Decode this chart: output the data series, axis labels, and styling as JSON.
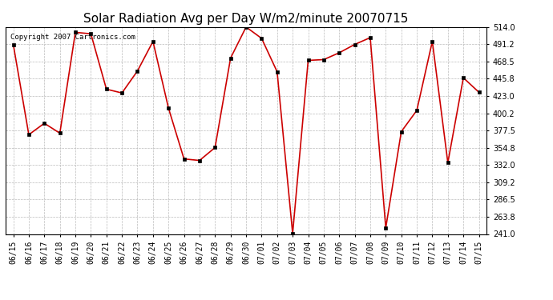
{
  "title": "Solar Radiation Avg per Day W/m2/minute 20070715",
  "copyright_text": "Copyright 2007 Cartronics.com",
  "dates": [
    "06/15",
    "06/16",
    "06/17",
    "06/18",
    "06/19",
    "06/20",
    "06/21",
    "06/22",
    "06/23",
    "06/24",
    "06/25",
    "06/26",
    "06/27",
    "06/28",
    "06/29",
    "06/30",
    "07/01",
    "07/02",
    "07/03",
    "07/04",
    "07/05",
    "07/06",
    "07/07",
    "07/08",
    "07/09",
    "07/10",
    "07/11",
    "07/12",
    "07/13",
    "07/14",
    "07/15"
  ],
  "values": [
    491.0,
    372.0,
    387.0,
    374.0,
    507.0,
    505.0,
    432.0,
    427.0,
    456.0,
    495.0,
    407.0,
    340.0,
    338.0,
    355.0,
    473.0,
    514.0,
    499.0,
    455.0,
    241.5,
    470.0,
    471.0,
    480.0,
    491.0,
    500.0,
    249.0,
    376.0,
    404.0,
    495.0,
    335.0,
    447.0,
    428.0
  ],
  "ylim": [
    241.0,
    514.0
  ],
  "yticks": [
    241.0,
    263.8,
    286.5,
    309.2,
    332.0,
    354.8,
    377.5,
    400.2,
    423.0,
    445.8,
    468.5,
    491.2,
    514.0
  ],
  "line_color": "#cc0000",
  "marker": "s",
  "marker_size": 2.5,
  "bg_color": "#ffffff",
  "grid_color": "#bbbbbb",
  "title_fontsize": 11,
  "tick_fontsize": 7,
  "copyright_fontsize": 6.5
}
